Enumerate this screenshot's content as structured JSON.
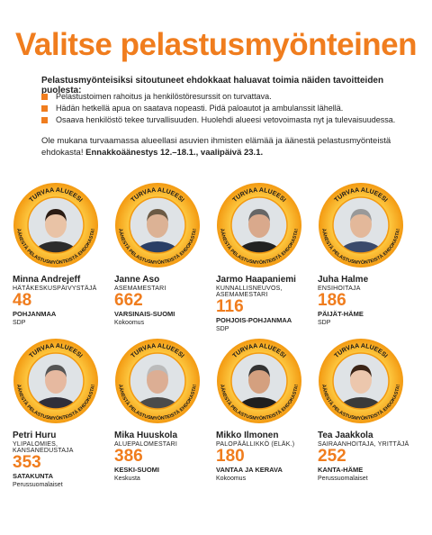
{
  "header": {
    "title": "Valitse pelastusmyönteinen",
    "intro": "Pelastusmyönteisiksi sitoutuneet ehdokkaat haluavat toimia näiden tavoitteiden puolesta:"
  },
  "bullets": [
    "Pelastustoimen rahoitus ja henkilöstöresurssit on turvattava.",
    "Hädän hetkellä apua on saatava nopeasti. Pidä paloautot ja ambulanssit lähellä.",
    "Osaava henkilöstö tekee turvallisuuden. Huolehdi alueesi vetovoimasta nyt ja tulevaisuudessa."
  ],
  "call": {
    "text": "Ole mukana turvaamassa alueellasi asuvien ihmisten elämää ja äänestä pelastusmyönteistä ehdokasta!",
    "bold": "Ennakkoäänestys 12.–18.1., vaalipäivä 23.1."
  },
  "badge": {
    "top": "TURVAA ALUEESI",
    "bottom": "ÄÄNESTÄ PELASTUSMYÖNTEISTÄ EHDOKASTA!"
  },
  "candidates": [
    {
      "name": "Minna Andrejeff",
      "occupation": "HÄTÄKESKUSPÄIVYSTÄJÄ",
      "number": 48,
      "region": "POHJANMAA",
      "party": "SDP"
    },
    {
      "name": "Janne Aso",
      "occupation": "ASEMAMESTARI",
      "number": 662,
      "region": "VARSINAIS-SUOMI",
      "party": "Kokoomus"
    },
    {
      "name": "Jarmo Haapaniemi",
      "occupation": "KUNNALLISNEUVOS, ASEMAMESTARI",
      "number": 116,
      "region": "POHJOIS-POHJANMAA",
      "party": "SDP"
    },
    {
      "name": "Juha Halme",
      "occupation": "ENSIHOITAJA",
      "number": 186,
      "region": "PÄIJÄT-HÄME",
      "party": "SDP"
    },
    {
      "name": "Petri Huru",
      "occupation": "YLIPALOMIES, KANSANEDUSTAJA",
      "number": 353,
      "region": "SATAKUNTA",
      "party": "Perussuomalaiset"
    },
    {
      "name": "Mika Huuskola",
      "occupation": "ALUEPALOMESTARI",
      "number": 386,
      "region": "KESKI-SUOMI",
      "party": "Keskusta"
    },
    {
      "name": "Mikko Ilmonen",
      "occupation": "PALOPÄÄLLIKKÖ (ELÄK.)",
      "number": 180,
      "region": "VANTAA JA KERAVA",
      "party": "Kokoomus"
    },
    {
      "name": "Tea Jaakkola",
      "occupation": "SAIRAANHOITAJA, YRITTÄJÄ",
      "number": 252,
      "region": "KANTA-HÄME",
      "party": "Perussuomalaiset"
    }
  ]
}
